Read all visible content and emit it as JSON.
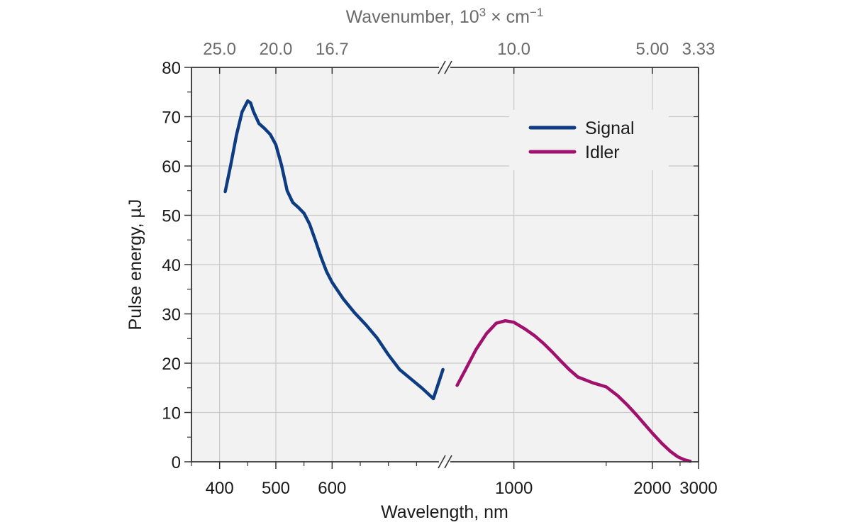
{
  "chart_data": {
    "type": "line",
    "xlabel": "Wavelength, nm",
    "ylabel": "Pulse energy, µJ",
    "top_axis_label": {
      "prefix": "Wavenumber, 10",
      "exponent": "3",
      "middle": " × cm",
      "unit_exponent": "−1"
    },
    "ylim": [
      0,
      80
    ],
    "y_ticks": [
      "0",
      "10",
      "20",
      "30",
      "40",
      "50",
      "60",
      "70",
      "80"
    ],
    "x_axis_segments": [
      {
        "range": [
          350,
          800
        ],
        "scale": "linear",
        "tick_values": [
          400,
          500,
          600
        ],
        "tick_labels": [
          "400",
          "500",
          "600"
        ]
      },
      {
        "range": [
          800,
          3000
        ],
        "scale": "reciprocal",
        "tick_values": [
          1000,
          2000,
          3000
        ],
        "tick_labels": [
          "1000",
          "2000",
          "3000"
        ]
      }
    ],
    "axis_break": true,
    "top_ticks": [
      {
        "label": "25.0",
        "wavelength": 400
      },
      {
        "label": "20.0",
        "wavelength": 500
      },
      {
        "label": "16.7",
        "wavelength": 600
      },
      {
        "label": "10.0",
        "wavelength": 1000
      },
      {
        "label": "5.00",
        "wavelength": 2000
      },
      {
        "label": "3.33",
        "wavelength": 3000
      }
    ],
    "grid": true,
    "legend_position": "top-right",
    "series": [
      {
        "name": "Signal",
        "color": "#0e3c82",
        "x": [
          410,
          420,
          430,
          440,
          450,
          455,
          460,
          470,
          480,
          490,
          500,
          510,
          520,
          530,
          540,
          550,
          560,
          570,
          580,
          590,
          600,
          620,
          640,
          660,
          680,
          700,
          720,
          740,
          760,
          780,
          797
        ],
        "y": [
          54.8,
          60.3,
          66.3,
          71.0,
          73.2,
          72.8,
          71.1,
          68.6,
          67.6,
          66.4,
          64.3,
          60.2,
          55.0,
          52.6,
          51.6,
          50.4,
          48.2,
          45.0,
          41.6,
          38.6,
          36.4,
          33.0,
          30.2,
          27.8,
          25.1,
          21.7,
          18.7,
          16.8,
          14.9,
          12.8,
          18.7
        ]
      },
      {
        "name": "Idler",
        "color": "#a0106c",
        "x": [
          830,
          850,
          880,
          910,
          940,
          970,
          1000,
          1040,
          1080,
          1120,
          1160,
          1200,
          1250,
          1300,
          1400,
          1500,
          1600,
          1700,
          1800,
          1900,
          2000,
          2150,
          2300,
          2450,
          2600,
          2750
        ],
        "y": [
          15.5,
          18.5,
          22.8,
          26.0,
          28.1,
          28.6,
          28.3,
          27.0,
          25.6,
          24.0,
          22.3,
          20.6,
          18.7,
          17.2,
          16.0,
          15.2,
          13.4,
          11.4,
          9.4,
          7.5,
          5.8,
          3.7,
          2.1,
          1.0,
          0.4,
          0.1
        ]
      }
    ]
  }
}
